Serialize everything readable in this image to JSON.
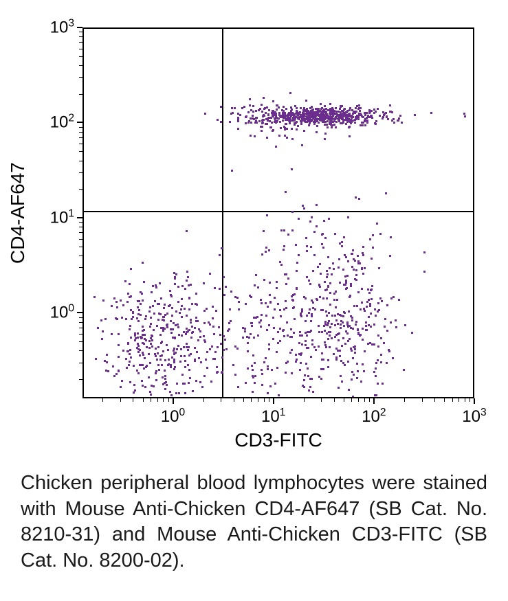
{
  "chart": {
    "type": "scatter",
    "xlabel": "CD3-FITC",
    "ylabel": "CD4-AF647",
    "label_fontsize": 28,
    "tick_fontsize": 24,
    "dot_color": "#6b2e8f",
    "border_color": "#000000",
    "background_color": "#ffffff",
    "x_scale": "log",
    "y_scale": "log",
    "xlim_log10": [
      -0.9,
      3.0
    ],
    "ylim_log10": [
      -0.9,
      3.0
    ],
    "x_ticks": [
      {
        "log10": 0,
        "label": "10",
        "sup": "0"
      },
      {
        "log10": 1,
        "label": "10",
        "sup": "1"
      },
      {
        "log10": 2,
        "label": "10",
        "sup": "2"
      },
      {
        "log10": 3,
        "label": "10",
        "sup": "3"
      }
    ],
    "y_ticks": [
      {
        "log10": 0,
        "label": "10",
        "sup": "0"
      },
      {
        "log10": 1,
        "label": "10",
        "sup": "1"
      },
      {
        "log10": 2,
        "label": "10",
        "sup": "2"
      },
      {
        "log10": 3,
        "label": "10",
        "sup": "3"
      }
    ],
    "quadrant_x_log10": 0.48,
    "quadrant_y_log10": 1.08,
    "clusters": [
      {
        "name": "upper-right-dense",
        "cx_log10": 1.45,
        "cy_log10": 2.08,
        "n": 600,
        "sx": 0.32,
        "sy": 0.045,
        "density": "high"
      },
      {
        "name": "upper-right-fringe",
        "cx_log10": 1.15,
        "cy_log10": 2.05,
        "n": 120,
        "sx": 0.35,
        "sy": 0.1,
        "density": "low"
      },
      {
        "name": "lower-left",
        "cx_log10": -0.15,
        "cy_log10": -0.3,
        "n": 350,
        "sx": 0.3,
        "sy": 0.35,
        "density": "medium"
      },
      {
        "name": "lower-right",
        "cx_log10": 1.45,
        "cy_log10": -0.1,
        "n": 320,
        "sx": 0.35,
        "sy": 0.45,
        "density": "medium"
      },
      {
        "name": "lower-right-tail",
        "cx_log10": 1.8,
        "cy_log10": -0.1,
        "n": 100,
        "sx": 0.15,
        "sy": 0.4,
        "density": "low"
      },
      {
        "name": "lower-middle-sparse",
        "cx_log10": 0.7,
        "cy_log10": -0.25,
        "n": 120,
        "sx": 0.35,
        "sy": 0.35,
        "density": "low"
      },
      {
        "name": "middle-bridge",
        "cx_log10": 1.5,
        "cy_log10": 0.8,
        "n": 40,
        "sx": 0.3,
        "sy": 0.3,
        "density": "low"
      },
      {
        "name": "far-right-outlier",
        "cx_log10": 2.9,
        "cy_log10": 2.1,
        "n": 2,
        "sx": 0.02,
        "sy": 0.02,
        "density": "low"
      }
    ]
  },
  "caption": "Chicken peripheral blood lymphocytes were stained with Mouse Anti-Chicken CD4-AF647 (SB Cat. No. 8210-31) and Mouse Anti-Chicken CD3-FITC (SB Cat. No. 8200-02).",
  "caption_fontsize": 29,
  "caption_color": "#1a1a1a"
}
